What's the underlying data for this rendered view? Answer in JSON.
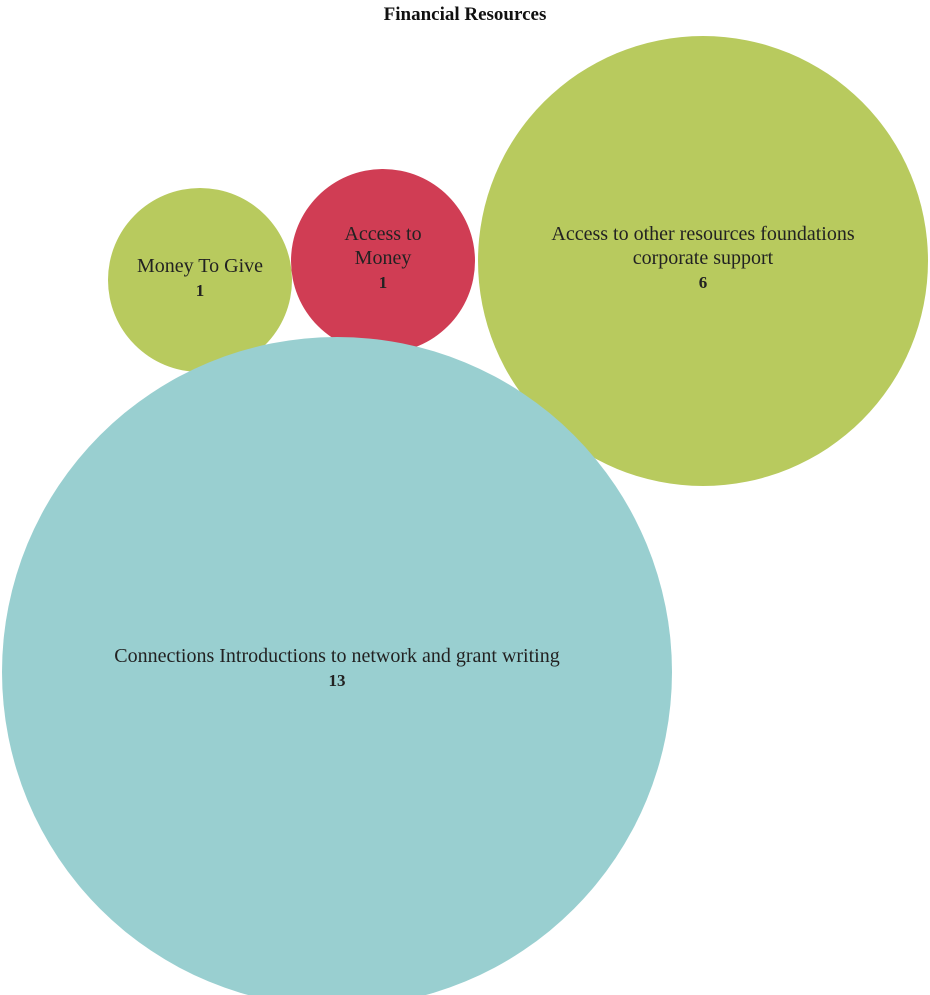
{
  "chart_data": {
    "type": "bubble",
    "title": "Financial Resources",
    "bubbles": [
      {
        "label_lines": [
          "Money To Give"
        ],
        "value": 1,
        "color": "#b8ca5e"
      },
      {
        "label_lines": [
          "Access to",
          "Money"
        ],
        "value": 1,
        "color": "#d03d54"
      },
      {
        "label_lines": [
          "Access to other resources foundations",
          "corporate support"
        ],
        "value": 6,
        "color": "#b8ca5e"
      },
      {
        "label_lines": [
          "Connections Introductions to network and grant writing"
        ],
        "value": 13,
        "color": "#99cfd0"
      }
    ],
    "legend": "none"
  }
}
